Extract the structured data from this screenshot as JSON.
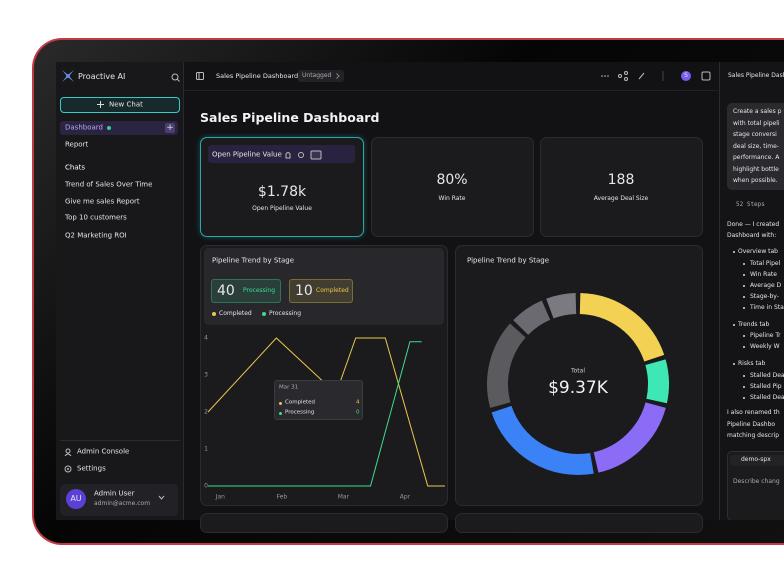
{
  "sidebar": {
    "brand": "Proactive AI",
    "new_chat": "New Chat",
    "nav": [
      "Dashboard",
      "Report"
    ],
    "chats_heading": "Chats",
    "chats": [
      "Trend of Sales Over Time",
      "Give me sales Report",
      "Top 10 customers",
      "Q2 Marketing ROI"
    ],
    "footer": [
      "Admin Console",
      "Settings"
    ],
    "user": {
      "initials": "AU",
      "name": "Admin User",
      "email": "admin@acme.com"
    }
  },
  "topbar": {
    "title": "Sales Pipeline Dashboard",
    "tag": "Untagged",
    "avatar": "S",
    "panel_title": "Sales Pipeline Dash"
  },
  "dashboard": {
    "title": "Sales Pipeline Dashboard",
    "kpis": [
      {
        "header": "Open Pipeline Value",
        "value": "$1.78k",
        "label": "Open Pipeline Value"
      },
      {
        "value": "80%",
        "label": "Win Rate"
      },
      {
        "value": "188",
        "label": "Average Deal Size"
      }
    ],
    "trend_chart": {
      "type": "line",
      "title": "Pipeline Trend by Stage",
      "badges": [
        {
          "value": "40",
          "label": "Processing",
          "color": "#3fdc97"
        },
        {
          "value": "10",
          "label": "Completed",
          "color": "#e9c84a"
        }
      ],
      "xlim": [
        -0.2,
        3.65
      ],
      "xticks": [
        {
          "value": 0,
          "label": "Jan"
        },
        {
          "value": 1,
          "label": "Feb"
        },
        {
          "value": 2,
          "label": "Mar"
        },
        {
          "value": 3,
          "label": "Apr"
        }
      ],
      "ylim": [
        0,
        4
      ],
      "yticks": [
        0,
        1,
        2,
        3,
        4
      ],
      "series": [
        {
          "name": "Completed",
          "color": "#e9c84a",
          "x": [
            -0.2,
            0.91,
            1.88,
            2.2,
            2.68,
            3.37,
            3.65
          ],
          "values": [
            2,
            4,
            2.5,
            4,
            4,
            0,
            0
          ]
        },
        {
          "name": "Processing",
          "color": "#3fdc8f",
          "x": [
            -0.2,
            2.44,
            3.08,
            3.27
          ],
          "values": [
            0,
            0,
            3.9,
            3.9
          ]
        }
      ],
      "tooltip": {
        "title": "Mar 31",
        "rows": [
          {
            "name": "Completed",
            "value": 4
          },
          {
            "name": "Processing",
            "value": 0
          }
        ]
      }
    },
    "donut_chart": {
      "type": "donut",
      "title": "Pipeline Trend by Stage",
      "center_label": "Total",
      "center_value": "$9.37K",
      "values": [
        70,
        28,
        62,
        82,
        57,
        22,
        19
      ],
      "colors": [
        "#f3d253",
        "#3ee8b5",
        "#8b6cf6",
        "#3b82f6",
        "#5a5a5f",
        "#6a6a70",
        "#7a7a80"
      ]
    }
  },
  "assistant": {
    "prompt": [
      "Create a sales p",
      "with total pipeli",
      "stage conversi",
      "deal size, time-",
      "performance. A",
      "highlight bottle",
      "when possible."
    ],
    "steps": "52 Steps",
    "reply": [
      "Done — I created",
      "Dashboard with:"
    ],
    "sections": [
      {
        "title": "Overview tab",
        "items": [
          "Total Pipel",
          "Win Rate",
          "Average D",
          "Stage-by-",
          "Time in Sta"
        ]
      },
      {
        "title": "Trends tab",
        "items": [
          "Pipeline Tr",
          "Weekly W"
        ]
      },
      {
        "title": "Risks tab",
        "items": [
          "Stalled Dea",
          "Stalled Pip",
          "Stalled Dea"
        ]
      }
    ],
    "closing": [
      "I also renamed th",
      "Pipeline Dashbo",
      "matching descrip"
    ],
    "repo": "demo-spx",
    "input_placeholder": "Describe chang"
  }
}
